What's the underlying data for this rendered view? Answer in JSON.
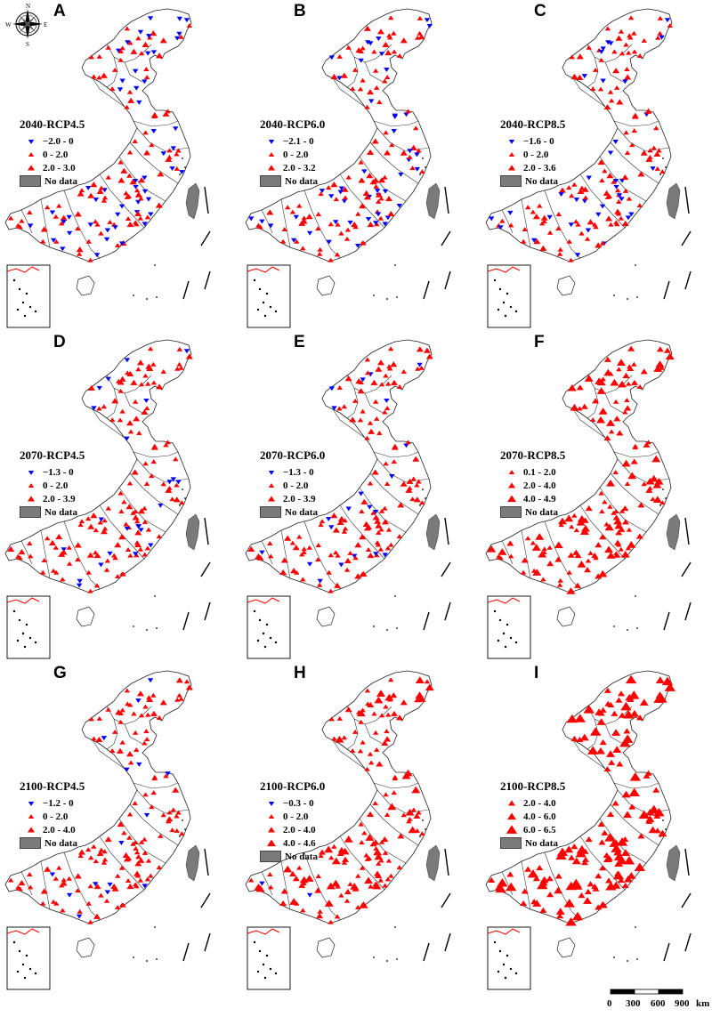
{
  "panels": [
    {
      "letter": "A",
      "title": "2040-RCP4.5",
      "legend": [
        {
          "label": "−2.0 - 0",
          "symbol": "down",
          "size": "s"
        },
        {
          "label": "0 - 2.0",
          "symbol": "up",
          "size": "s"
        },
        {
          "label": "2.0 - 3.0",
          "symbol": "up",
          "size": "m"
        },
        {
          "label": "No data",
          "symbol": "box"
        }
      ]
    },
    {
      "letter": "B",
      "title": "2040-RCP6.0",
      "legend": [
        {
          "label": "−2.1 - 0",
          "symbol": "down",
          "size": "s"
        },
        {
          "label": "0 - 2.0",
          "symbol": "up",
          "size": "s"
        },
        {
          "label": "2.0 - 3.2",
          "symbol": "up",
          "size": "m"
        },
        {
          "label": "No data",
          "symbol": "box"
        }
      ]
    },
    {
      "letter": "C",
      "title": "2040-RCP8.5",
      "legend": [
        {
          "label": "−1.6 - 0",
          "symbol": "down",
          "size": "s"
        },
        {
          "label": "0 - 2.0",
          "symbol": "up",
          "size": "s"
        },
        {
          "label": "2.0 - 3.6",
          "symbol": "up",
          "size": "m"
        },
        {
          "label": "No data",
          "symbol": "box"
        }
      ]
    },
    {
      "letter": "D",
      "title": "2070-RCP4.5",
      "legend": [
        {
          "label": "−1.3 - 0",
          "symbol": "down",
          "size": "s"
        },
        {
          "label": "0 - 2.0",
          "symbol": "up",
          "size": "s"
        },
        {
          "label": "2.0 - 3.9",
          "symbol": "up",
          "size": "m"
        },
        {
          "label": "No data",
          "symbol": "box"
        }
      ]
    },
    {
      "letter": "E",
      "title": "2070-RCP6.0",
      "legend": [
        {
          "label": "−1.3 - 0",
          "symbol": "down",
          "size": "s"
        },
        {
          "label": "0 - 2.0",
          "symbol": "up",
          "size": "s"
        },
        {
          "label": "2.0 - 3.9",
          "symbol": "up",
          "size": "m"
        },
        {
          "label": "No data",
          "symbol": "box"
        }
      ]
    },
    {
      "letter": "F",
      "title": "2070-RCP8.5",
      "legend": [
        {
          "label": "0.1 - 2.0",
          "symbol": "up",
          "size": "s"
        },
        {
          "label": "2.0 - 4.0",
          "symbol": "up",
          "size": "m"
        },
        {
          "label": "4.0 - 4.9",
          "symbol": "up",
          "size": "l"
        },
        {
          "label": "No data",
          "symbol": "box"
        }
      ]
    },
    {
      "letter": "G",
      "title": "2100-RCP4.5",
      "legend": [
        {
          "label": "−1.2 - 0",
          "symbol": "down",
          "size": "s"
        },
        {
          "label": "0 - 2.0",
          "symbol": "up",
          "size": "s"
        },
        {
          "label": "2.0 - 4.0",
          "symbol": "up",
          "size": "m"
        },
        {
          "label": "No data",
          "symbol": "box"
        }
      ]
    },
    {
      "letter": "H",
      "title": "2100-RCP6.0",
      "legend": [
        {
          "label": "−0.3 - 0",
          "symbol": "down",
          "size": "s"
        },
        {
          "label": "0 - 2.0",
          "symbol": "up",
          "size": "s"
        },
        {
          "label": "2.0 - 4.0",
          "symbol": "up",
          "size": "m"
        },
        {
          "label": "4.0 - 4.6",
          "symbol": "up",
          "size": "l"
        },
        {
          "label": "No data",
          "symbol": "box"
        }
      ]
    },
    {
      "letter": "I",
      "title": "2100-RCP8.5",
      "legend": [
        {
          "label": "2.0 - 4.0",
          "symbol": "up",
          "size": "m"
        },
        {
          "label": "4.0 - 6.0",
          "symbol": "up",
          "size": "l"
        },
        {
          "label": "6.0 - 6.5",
          "symbol": "up",
          "size": "xl"
        },
        {
          "label": "No data",
          "symbol": "box"
        }
      ]
    }
  ],
  "compass": {
    "n": "N",
    "s": "S",
    "e": "E",
    "w": "W"
  },
  "scale": {
    "ticks": [
      "0",
      "300",
      "600",
      "900"
    ],
    "unit": "km"
  },
  "colors": {
    "increase": "#ff0000",
    "decrease": "#0000ff",
    "nodata": "#7a7a7a"
  }
}
